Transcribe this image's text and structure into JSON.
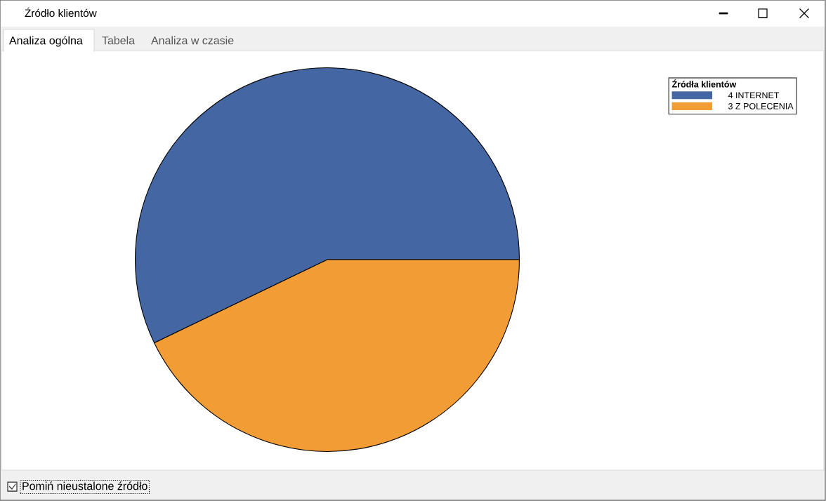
{
  "chart_data": {
    "type": "pie",
    "title": "Źródło klientów",
    "categories": [
      "4 INTERNET",
      "3 Z POLECENIA"
    ],
    "values": [
      4,
      3
    ],
    "colors": [
      "#4467a4",
      "#f29c36"
    ],
    "legend": "top right",
    "legend_title": "Źródła klientów",
    "annotations": [
      "Analiza ogólna",
      "Tabela",
      "Analiza w czasie",
      "Pomiń nieustalone źródło"
    ]
  }
}
